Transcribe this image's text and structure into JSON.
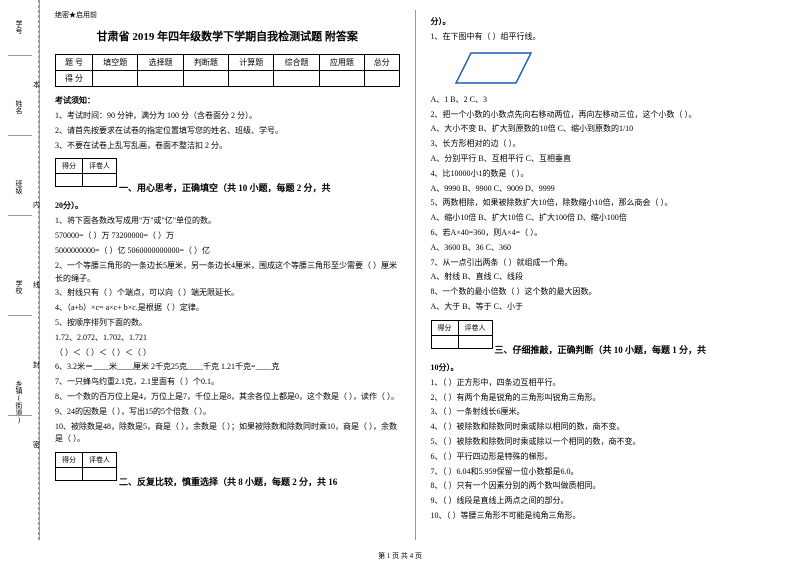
{
  "sidebar": {
    "labels": [
      "学号",
      "姓名",
      "班级",
      "学校",
      "乡镇(街道)"
    ],
    "chars": [
      "本",
      "内",
      "线",
      "封",
      "密"
    ]
  },
  "secret": "绝密★启用前",
  "title": "甘肃省 2019 年四年级数学下学期自我检测试题 附答案",
  "scoreTable": {
    "headers": [
      "题  号",
      "填空题",
      "选择题",
      "判断题",
      "计算题",
      "综合题",
      "应用题",
      "总分"
    ],
    "row": [
      "得  分",
      "",
      "",
      "",
      "",
      "",
      "",
      ""
    ]
  },
  "examNotice": {
    "heading": "考试须知：",
    "items": [
      "1、考试时间：90 分钟，满分为 100 分（含卷面分 2 分）。",
      "2、请首先按要求在试卷的指定位置填写您的姓名、班级、学号。",
      "3、不要在试卷上乱写乱画，卷面不整洁扣 2 分。"
    ]
  },
  "scoreBox": {
    "c1": "得分",
    "c2": "评卷人"
  },
  "section1": {
    "title": "一、用心思考，正确填空（共 10 小题，每题 2 分，共",
    "cont": "20分）。",
    "items": [
      "1、将下面各数改写成用\"万\"或\"亿\"单位的数。",
      "   570000=（        ）万            73200000=（        ）万",
      "   5000000000=（        ）亿         5060000000000=（        ）亿",
      "2、一个等腰三角形的一条边长5厘米，另一条边长4厘米，围成这个等腰三角形至少需要（   ）厘米长的绳子。",
      "3、射线只有（   ）个端点，可以向（   ）端无限延长。",
      "4、（a+b）×c= a×c+ b×c.是根据（   ）定律。",
      "5、按顺序排列下面的数。",
      "   1.72、2.072、1.702、1.721",
      "   （   ）＜（   ）＜（   ）＜（   ）",
      "6、3.2米＝____米____厘米   2千克25克____千克   1.21千克=____克",
      "7、一只蜂鸟约重2.1克，2.1里面有（   ）个0.1。",
      "8、一个数的百万位上是4，万位上是7，千位上是8，其余各位上都是0，这个数是（   ），读作（            ）。",
      "9、24的因数是（            ），写出15的5个倍数（            ）。",
      "10、被除数是48，除数是5，商是（   ），余数是（   ）；如果被除数和除数同时乘10，商是（   ），余数是（   ）。"
    ]
  },
  "section2": {
    "title": "二、反复比较，慎重选择（共 8 小题，每题 2 分，共 16",
    "cont": "分）。",
    "items": [
      "1、在下图中有（   ）组平行线。",
      "   A、1        B、2        C、3",
      "2、把一个小数的小数点先向右移动两位，再向左移动三位，这个小数（   ）。",
      "   A、大小不变     B、扩大到原数的10倍     C、缩小到原数的1/10",
      "3、长方形相对的边（   ）。",
      "   A、分别平行        B、互相平行        C、互相垂直",
      "4、比10000小1的数是（   ）。",
      "   A、9990   B、9900   C、9009   D、9999",
      "5、两数相除，如果被除数扩大10倍，除数缩小10倍，那么商会（   ）。",
      "   A、缩小10倍   B、扩大10倍   C、扩大100倍   D、缩小100倍",
      "6、若A×40=360，则A×4=（   ）。",
      "   A、3600    B、36    C、360",
      "7、从一点引出两条（   ）就组成一个角。",
      "   A、射线    B、直线    C、线段",
      "8、一个数的最小倍数（   ）这个数的最大因数。",
      "   A、大于    B、等于    C、小于"
    ]
  },
  "section3": {
    "title": "三、仔细推敲，正确判断（共 10 小题，每题 1 分，共",
    "cont": "10分）。",
    "items": [
      "1、（   ）正方形中，四条边互相平行。",
      "2、（   ）有两个角是锐角的三角形叫锐角三角形。",
      "3、（   ）一条射线长6厘米。",
      "4、（   ）被除数和除数同时乘或除以相同的数，商不变。",
      "5、（   ）被除数和除数同时乘或除以一个相同的数，商不变。",
      "6、（   ）平行四边形是特殊的梯形。",
      "7、（   ）6.04和5.959保留一位小数都是6.0。",
      "8、（   ）只有一个因素分别的两个数叫做质相同。",
      "9、（   ）线段是直线上两点之间的部分。",
      "10、（   ）等腰三角形不可能是纯角三角形。"
    ]
  },
  "footer": "第 1 页 共 4 页",
  "parallelogram": {
    "stroke": "#1a5fb4",
    "fill": "none",
    "strokeWidth": 1.5
  }
}
